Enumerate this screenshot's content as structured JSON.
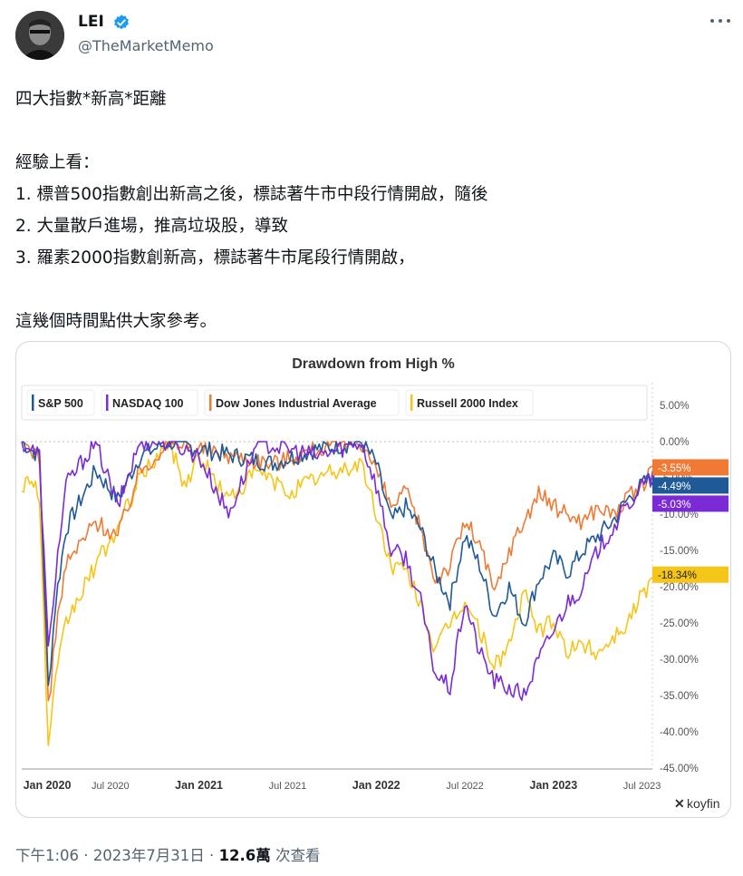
{
  "author": {
    "name": "LEI",
    "handle": "@TheMarketMemo",
    "verified_color": "#1d9bf0"
  },
  "tweet": {
    "lines": [
      "四大指數*新高*距離",
      "",
      "經驗上看：",
      "1. 標普500指數創出新高之後，標誌著牛市中段行情開啟，隨後",
      "2. 大量散戶進場，推高垃圾股，導致",
      "3. 羅素2000指數創新高，標誌著牛市尾段行情開啟，",
      "",
      "這幾個時間點供大家參考。"
    ]
  },
  "footer": {
    "time": "下午1:06",
    "sep1": " · ",
    "date": "2023年7月31日",
    "sep2": " · ",
    "views": "12.6萬",
    "views_label": " 次查看"
  },
  "chart_data": {
    "type": "line",
    "title": "Drawdown from High %",
    "x_range": [
      "2020-01",
      "2023-07"
    ],
    "x_ticks": [
      "Jan 2020",
      "Jul 2020",
      "Jan 2021",
      "Jul 2021",
      "Jan 2022",
      "Jul 2022",
      "Jan 2023",
      "Jul 2023"
    ],
    "y_ticks": [
      "5.00%",
      "0.00%",
      "-5.00%",
      "-10.00%",
      "-15.00%",
      "-20.00%",
      "-25.00%",
      "-30.00%",
      "-35.00%",
      "-40.00%",
      "-45.00%"
    ],
    "ylim": [
      -45,
      7
    ],
    "grid": false,
    "legend_position": "top-left",
    "watermark": "koyfin",
    "series": [
      {
        "name": "S&P 500",
        "color": "#1f5a96",
        "end_label": "-4.49%",
        "points": [
          [
            0,
            0
          ],
          [
            1.2,
            -2
          ],
          [
            1.8,
            -34
          ],
          [
            2.3,
            -22
          ],
          [
            3,
            -12
          ],
          [
            5,
            -4
          ],
          [
            6.5,
            -8
          ],
          [
            8,
            -2
          ],
          [
            10,
            0
          ],
          [
            12,
            -1
          ],
          [
            17,
            -3
          ],
          [
            20,
            -1
          ],
          [
            23,
            0
          ],
          [
            24,
            -3
          ],
          [
            25,
            -11
          ],
          [
            26,
            -9
          ],
          [
            27,
            -12
          ],
          [
            28,
            -18
          ],
          [
            29,
            -22
          ],
          [
            30,
            -13
          ],
          [
            31,
            -17
          ],
          [
            32,
            -24
          ],
          [
            33,
            -20
          ],
          [
            34,
            -25
          ],
          [
            35,
            -19
          ],
          [
            36,
            -16
          ],
          [
            37,
            -18
          ],
          [
            38,
            -15
          ],
          [
            39,
            -13
          ],
          [
            40,
            -11
          ],
          [
            41,
            -8
          ],
          [
            42,
            -6
          ],
          [
            43,
            -4.5
          ]
        ]
      },
      {
        "name": "NASDAQ 100",
        "color": "#7b2bd6",
        "end_label": "-5.03%",
        "points": [
          [
            0,
            0
          ],
          [
            1.2,
            -2
          ],
          [
            1.8,
            -29
          ],
          [
            2.3,
            -18
          ],
          [
            3,
            -6
          ],
          [
            5,
            0
          ],
          [
            6.5,
            -9
          ],
          [
            8,
            0
          ],
          [
            10,
            0
          ],
          [
            12,
            -2
          ],
          [
            14,
            -10
          ],
          [
            16,
            0
          ],
          [
            20,
            -2
          ],
          [
            23,
            0
          ],
          [
            24,
            -6
          ],
          [
            25,
            -15
          ],
          [
            26,
            -16
          ],
          [
            27,
            -22
          ],
          [
            28,
            -32
          ],
          [
            29,
            -34
          ],
          [
            30,
            -22
          ],
          [
            31,
            -29
          ],
          [
            32,
            -33
          ],
          [
            33,
            -34
          ],
          [
            34,
            -35
          ],
          [
            35,
            -30
          ],
          [
            36,
            -26
          ],
          [
            37,
            -22
          ],
          [
            38,
            -20
          ],
          [
            39,
            -15
          ],
          [
            40,
            -12
          ],
          [
            41,
            -9
          ],
          [
            42,
            -6
          ],
          [
            43,
            -5
          ]
        ]
      },
      {
        "name": "Dow Jones Industrial Average",
        "color": "#f07a34",
        "end_label": "-3.55%",
        "points": [
          [
            0,
            0
          ],
          [
            1.2,
            -2
          ],
          [
            1.8,
            -37
          ],
          [
            2.3,
            -26
          ],
          [
            3,
            -17
          ],
          [
            5,
            -11
          ],
          [
            6.5,
            -13
          ],
          [
            8,
            -4
          ],
          [
            10,
            0
          ],
          [
            12,
            -1
          ],
          [
            17,
            -3
          ],
          [
            20,
            -1
          ],
          [
            23,
            0
          ],
          [
            24,
            -4
          ],
          [
            25,
            -9
          ],
          [
            26,
            -7
          ],
          [
            27,
            -12
          ],
          [
            28,
            -19
          ],
          [
            29,
            -17
          ],
          [
            30,
            -11
          ],
          [
            31,
            -14
          ],
          [
            32,
            -21
          ],
          [
            33,
            -15
          ],
          [
            34,
            -11
          ],
          [
            35,
            -7
          ],
          [
            36,
            -9
          ],
          [
            37,
            -10
          ],
          [
            38,
            -11
          ],
          [
            39,
            -9
          ],
          [
            40,
            -10
          ],
          [
            41,
            -8
          ],
          [
            42,
            -6
          ],
          [
            43,
            -3.6
          ]
        ]
      },
      {
        "name": "Russell 2000 Index",
        "color": "#f5c518",
        "end_label": "-18.34%",
        "points": [
          [
            0,
            -6
          ],
          [
            0.8,
            -5
          ],
          [
            1.2,
            -8
          ],
          [
            1.8,
            -42
          ],
          [
            2.3,
            -33
          ],
          [
            3,
            -25
          ],
          [
            5,
            -17
          ],
          [
            6.5,
            -12
          ],
          [
            8,
            -5
          ],
          [
            10,
            0
          ],
          [
            11,
            -6
          ],
          [
            12,
            -2
          ],
          [
            14,
            -8
          ],
          [
            16,
            -4
          ],
          [
            18,
            -7
          ],
          [
            20,
            -5
          ],
          [
            23,
            -3
          ],
          [
            24,
            -10
          ],
          [
            25,
            -17
          ],
          [
            26,
            -18
          ],
          [
            27,
            -22
          ],
          [
            28,
            -29
          ],
          [
            29,
            -25
          ],
          [
            30,
            -22
          ],
          [
            31,
            -26
          ],
          [
            32,
            -31
          ],
          [
            33,
            -28
          ],
          [
            34,
            -21
          ],
          [
            35,
            -26
          ],
          [
            36,
            -25
          ],
          [
            37,
            -29
          ],
          [
            38,
            -28
          ],
          [
            39,
            -29
          ],
          [
            40,
            -27
          ],
          [
            41,
            -25
          ],
          [
            42,
            -21
          ],
          [
            43,
            -18.3
          ]
        ]
      }
    ]
  }
}
